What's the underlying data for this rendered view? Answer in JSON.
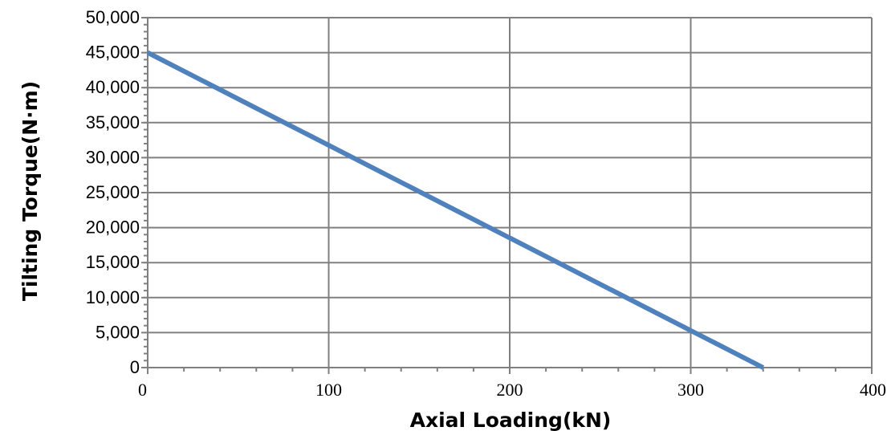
{
  "chart_data": {
    "type": "line",
    "title": "",
    "xlabel": "Axial Loading(kN)",
    "ylabel": "Tilting Torque(N·m)",
    "xlim": [
      0,
      400
    ],
    "ylim": [
      0,
      50000
    ],
    "xticks": [
      0,
      100,
      200,
      300,
      400
    ],
    "xtick_labels": [
      "0",
      "100",
      "200",
      "300",
      "400"
    ],
    "yticks": [
      0,
      5000,
      10000,
      15000,
      20000,
      25000,
      30000,
      35000,
      40000,
      45000,
      50000
    ],
    "ytick_labels": [
      "0",
      "5,000",
      "10,000",
      "15,000",
      "20,000",
      "25,000",
      "30,000",
      "35,000",
      "40,000",
      "45,000",
      "50,000"
    ],
    "grid": true,
    "legend": "none",
    "series": [
      {
        "color": "#4f81bd",
        "x": [
          0,
          340
        ],
        "y": [
          45000,
          0
        ]
      }
    ]
  },
  "colors": {
    "line": "#4f81bd",
    "grid": "#808080",
    "axis": "#808080"
  }
}
